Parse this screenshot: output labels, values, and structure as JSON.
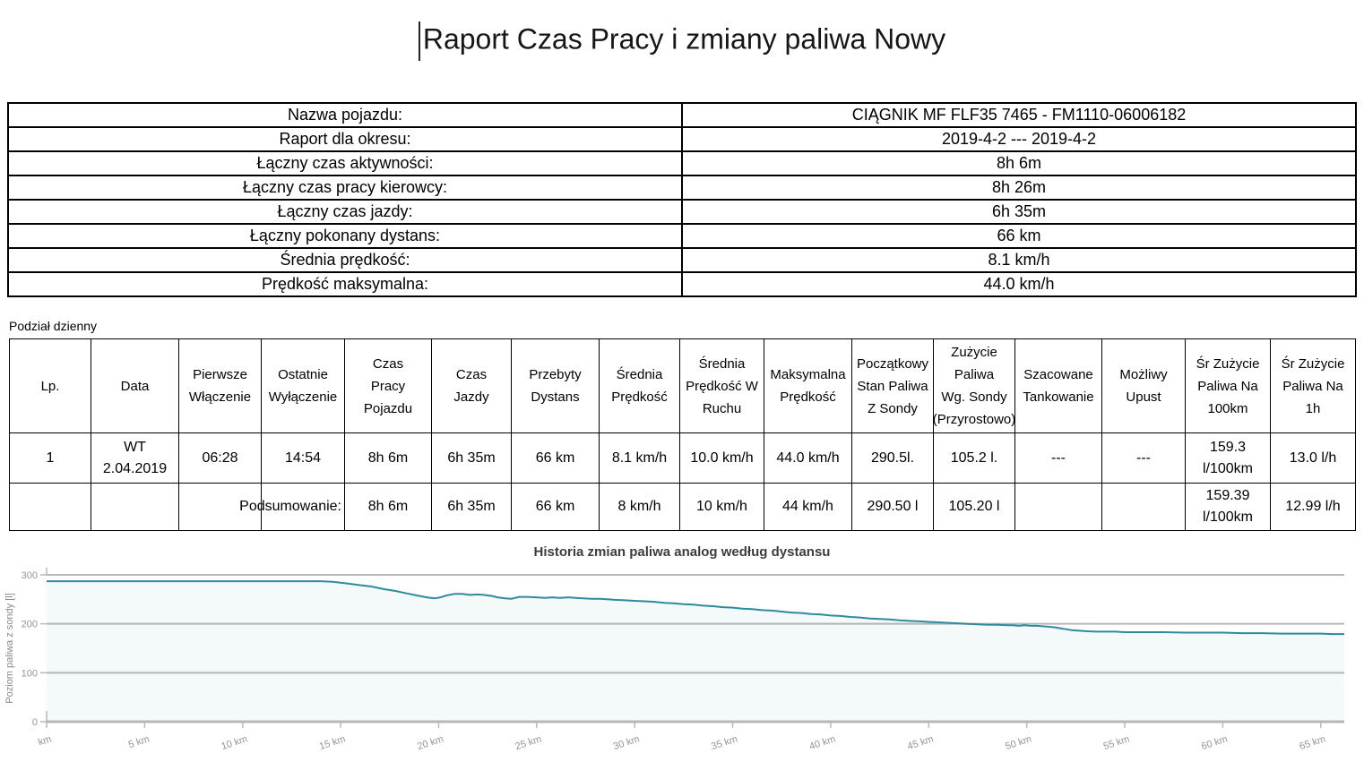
{
  "title": "Raport Czas Pracy i zmiany paliwa Nowy",
  "section_label": "Podział dzienny",
  "summary_table": {
    "rows": [
      {
        "label": "Nazwa pojazdu:",
        "value": "CIĄGNIK MF FLF35 7465 - FM1110-06006182"
      },
      {
        "label": "Raport dla okresu:",
        "value": "2019-4-2 --- 2019-4-2"
      },
      {
        "label": "Łączny czas aktywności:",
        "value": "8h 6m"
      },
      {
        "label": "Łączny czas pracy kierowcy:",
        "value": "8h 26m"
      },
      {
        "label": "Łączny czas jazdy:",
        "value": "6h 35m"
      },
      {
        "label": "Łączny pokonany dystans:",
        "value": "66 km"
      },
      {
        "label": "Średnia prędkość:",
        "value": "8.1 km/h"
      },
      {
        "label": "Prędkość maksymalna:",
        "value": "44.0 km/h"
      }
    ]
  },
  "daily_table": {
    "headers": [
      [
        "Lp."
      ],
      [
        "Data"
      ],
      [
        "Pierwsze",
        "Włączenie"
      ],
      [
        "Ostatnie",
        "Wyłączenie"
      ],
      [
        "Czas",
        "Pracy",
        "Pojazdu"
      ],
      [
        "Czas",
        "Jazdy"
      ],
      [
        "Przebyty",
        "Dystans"
      ],
      [
        "Średnia",
        "Prędkość"
      ],
      [
        "Średnia",
        "Prędkość W",
        "Ruchu"
      ],
      [
        "Maksymalna",
        "Prędkość"
      ],
      [
        "Początkowy",
        "Stan Paliwa",
        "Z Sondy"
      ],
      [
        "Zużycie",
        "Paliwa",
        "Wg. Sondy",
        "(Przyrostowo)"
      ],
      [
        "Szacowane",
        "Tankowanie"
      ],
      [
        "Możliwy",
        "Upust"
      ],
      [
        "Śr Zużycie",
        "Paliwa Na",
        "100km"
      ],
      [
        "Śr Zużycie",
        "Paliwa Na",
        "1h"
      ]
    ],
    "rows": [
      [
        "1",
        [
          "WT",
          "2.04.2019"
        ],
        "06:28",
        "14:54",
        "8h 6m",
        "6h 35m",
        "66 km",
        "8.1 km/h",
        "10.0 km/h",
        "44.0 km/h",
        "290.5l.",
        "105.2 l.",
        "---",
        "---",
        [
          "159.3",
          "l/100km"
        ],
        "13.0 l/h"
      ]
    ],
    "summary_row": {
      "label": "Podsumowanie:",
      "values": [
        "8h 6m",
        "6h 35m",
        "66 km",
        "8 km/h",
        "10 km/h",
        "44 km/h",
        "290.50 l",
        "105.20 l",
        "",
        "",
        [
          "159.39",
          "l/100km"
        ],
        "12.99 l/h"
      ]
    }
  },
  "chart_data": {
    "type": "line",
    "title": "Historia zmian paliwa analog według dystansu",
    "ylabel": "Poziom paliwa z sondy [l]",
    "xlabel": "",
    "yticks": [
      0,
      100,
      200,
      300
    ],
    "ylim": [
      0,
      300
    ],
    "xlim": [
      0,
      66.2
    ],
    "x_ticks": [
      {
        "km": 0,
        "label": "km"
      },
      {
        "km": 5,
        "label": "5 km"
      },
      {
        "km": 10,
        "label": "10 km"
      },
      {
        "km": 15,
        "label": "15 km"
      },
      {
        "km": 20,
        "label": "20 km"
      },
      {
        "km": 25,
        "label": "25 km"
      },
      {
        "km": 30,
        "label": "30 km"
      },
      {
        "km": 35,
        "label": "35 km"
      },
      {
        "km": 40,
        "label": "40 km"
      },
      {
        "km": 45,
        "label": "45 km"
      },
      {
        "km": 50,
        "label": "50 km"
      },
      {
        "km": 55,
        "label": "55 km"
      },
      {
        "km": 60,
        "label": "60 km"
      },
      {
        "km": 65,
        "label": "65 km"
      }
    ],
    "grid": true,
    "legend": "none",
    "line_color": "#2e8b9d",
    "area_fill": "rgba(46,139,157,0.05)",
    "grid_color": "#b9b9b9",
    "tick_text_color": "#949494",
    "series_name": "Poziom paliwa z sondy",
    "points": [
      [
        0,
        287
      ],
      [
        3,
        287
      ],
      [
        6,
        287
      ],
      [
        9,
        287
      ],
      [
        12,
        287
      ],
      [
        14,
        287
      ],
      [
        14.6,
        286
      ],
      [
        15.2,
        283
      ],
      [
        16,
        279
      ],
      [
        16.6,
        276
      ],
      [
        17.2,
        271
      ],
      [
        17.8,
        267
      ],
      [
        18.4,
        262
      ],
      [
        19,
        257
      ],
      [
        19.4,
        254
      ],
      [
        19.8,
        252
      ],
      [
        20.1,
        254
      ],
      [
        20.4,
        258
      ],
      [
        20.8,
        261
      ],
      [
        21.2,
        261
      ],
      [
        21.6,
        259
      ],
      [
        22,
        260
      ],
      [
        22.3,
        259
      ],
      [
        22.7,
        257
      ],
      [
        23,
        254
      ],
      [
        23.4,
        252
      ],
      [
        23.7,
        251
      ],
      [
        24.1,
        255
      ],
      [
        24.5,
        255
      ],
      [
        25,
        254
      ],
      [
        25.4,
        253
      ],
      [
        25.8,
        254
      ],
      [
        26.2,
        253
      ],
      [
        26.6,
        254
      ],
      [
        27,
        253
      ],
      [
        27.4,
        252
      ],
      [
        27.8,
        251
      ],
      [
        28.2,
        251
      ],
      [
        28.6,
        250
      ],
      [
        29,
        249
      ],
      [
        29.5,
        248
      ],
      [
        30,
        247
      ],
      [
        30.5,
        246
      ],
      [
        31,
        245
      ],
      [
        31.5,
        243
      ],
      [
        32,
        242
      ],
      [
        32.5,
        240
      ],
      [
        33,
        239
      ],
      [
        33.5,
        237
      ],
      [
        34,
        236
      ],
      [
        34.5,
        234
      ],
      [
        35,
        233
      ],
      [
        35.5,
        231
      ],
      [
        36,
        230
      ],
      [
        36.5,
        228
      ],
      [
        37,
        227
      ],
      [
        37.5,
        225
      ],
      [
        38,
        223
      ],
      [
        38.5,
        222
      ],
      [
        39,
        220
      ],
      [
        39.5,
        219
      ],
      [
        40,
        217
      ],
      [
        40.5,
        216
      ],
      [
        41,
        214
      ],
      [
        41.5,
        213
      ],
      [
        42,
        211
      ],
      [
        42.5,
        210
      ],
      [
        43,
        209
      ],
      [
        43.5,
        207
      ],
      [
        44,
        206
      ],
      [
        44.5,
        205
      ],
      [
        45,
        204
      ],
      [
        45.5,
        203
      ],
      [
        46,
        202
      ],
      [
        46.5,
        201
      ],
      [
        47,
        200
      ],
      [
        47.5,
        199
      ],
      [
        48,
        198
      ],
      [
        48.5,
        198
      ],
      [
        49,
        197
      ],
      [
        49.3,
        197
      ],
      [
        49.6,
        196
      ],
      [
        49.9,
        197
      ],
      [
        50.2,
        196
      ],
      [
        50.5,
        196
      ],
      [
        50.8,
        195
      ],
      [
        51.1,
        194
      ],
      [
        51.4,
        193
      ],
      [
        51.7,
        191
      ],
      [
        52,
        189
      ],
      [
        52.3,
        187
      ],
      [
        52.6,
        186
      ],
      [
        53,
        185
      ],
      [
        53.5,
        184
      ],
      [
        54,
        184
      ],
      [
        54.5,
        184
      ],
      [
        55,
        183
      ],
      [
        56,
        183
      ],
      [
        57,
        183
      ],
      [
        58,
        182
      ],
      [
        59,
        182
      ],
      [
        60,
        182
      ],
      [
        61,
        181
      ],
      [
        62,
        181
      ],
      [
        63,
        180
      ],
      [
        64,
        180
      ],
      [
        65,
        180
      ],
      [
        65.6,
        179
      ],
      [
        66.2,
        179
      ]
    ]
  }
}
